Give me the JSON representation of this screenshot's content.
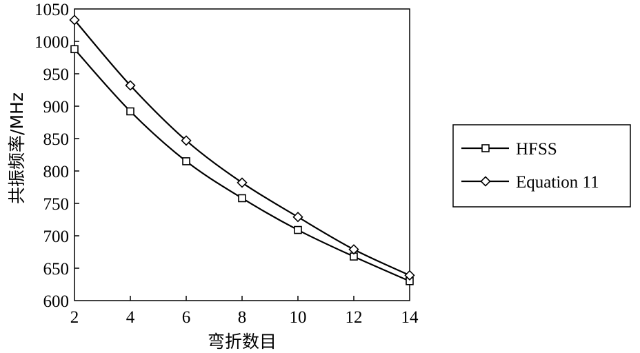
{
  "chart_data": {
    "type": "line",
    "xlabel": "弯折数目",
    "ylabel": "共振频率/MHz",
    "x": [
      2,
      4,
      6,
      8,
      10,
      12,
      14
    ],
    "xticks": [
      "2",
      "4",
      "6",
      "8",
      "10",
      "12",
      "14"
    ],
    "xlim": [
      2,
      14
    ],
    "yticks": [
      "600",
      "650",
      "700",
      "750",
      "800",
      "850",
      "900",
      "950",
      "1000",
      "1050"
    ],
    "ylim": [
      600,
      1050
    ],
    "grid": false,
    "legend_position": "right",
    "series": [
      {
        "name": "HFSS",
        "marker": "square",
        "color": "#000000",
        "values": [
          988,
          892,
          815,
          758,
          709,
          668,
          630
        ]
      },
      {
        "name": "Equation 11",
        "marker": "diamond",
        "color": "#000000",
        "values": [
          1033,
          932,
          847,
          782,
          729,
          679,
          639
        ]
      }
    ]
  }
}
